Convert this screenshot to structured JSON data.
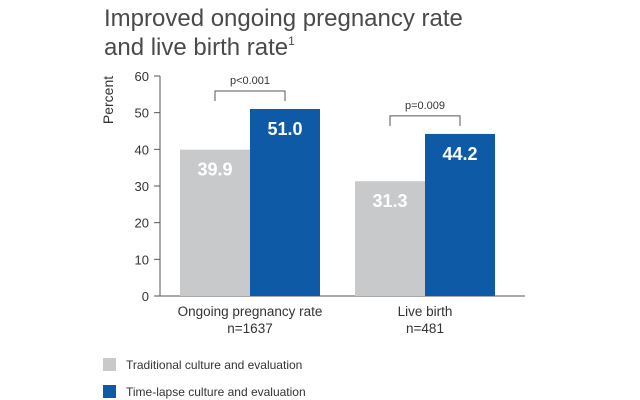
{
  "chart_data": {
    "type": "bar",
    "title_line1": "Improved ongoing pregnancy rate",
    "title_line2": "and live birth rate",
    "title_superscript": "1",
    "ylabel": "Percent",
    "xlabel": "",
    "ylim": [
      0,
      60
    ],
    "yticks": [
      0,
      10,
      20,
      30,
      40,
      50,
      60
    ],
    "categories": [
      {
        "label": "Ongoing pregnancy rate",
        "sublabel": "n=1637"
      },
      {
        "label": "Live birth",
        "sublabel": "n=481"
      }
    ],
    "series": [
      {
        "name": "Traditional culture and evaluation",
        "color": "#c8c9cb",
        "values": [
          39.9,
          31.3
        ]
      },
      {
        "name": "Time-lapse culture and evaluation",
        "color": "#0e5aa7",
        "values": [
          51.0,
          44.2
        ]
      }
    ],
    "value_labels": [
      [
        "39.9",
        "31.3"
      ],
      [
        "51.0",
        "44.2"
      ]
    ],
    "p_values": [
      "p<0.001",
      "p=0.009"
    ],
    "grid": false,
    "legend_position": "bottom-left"
  }
}
